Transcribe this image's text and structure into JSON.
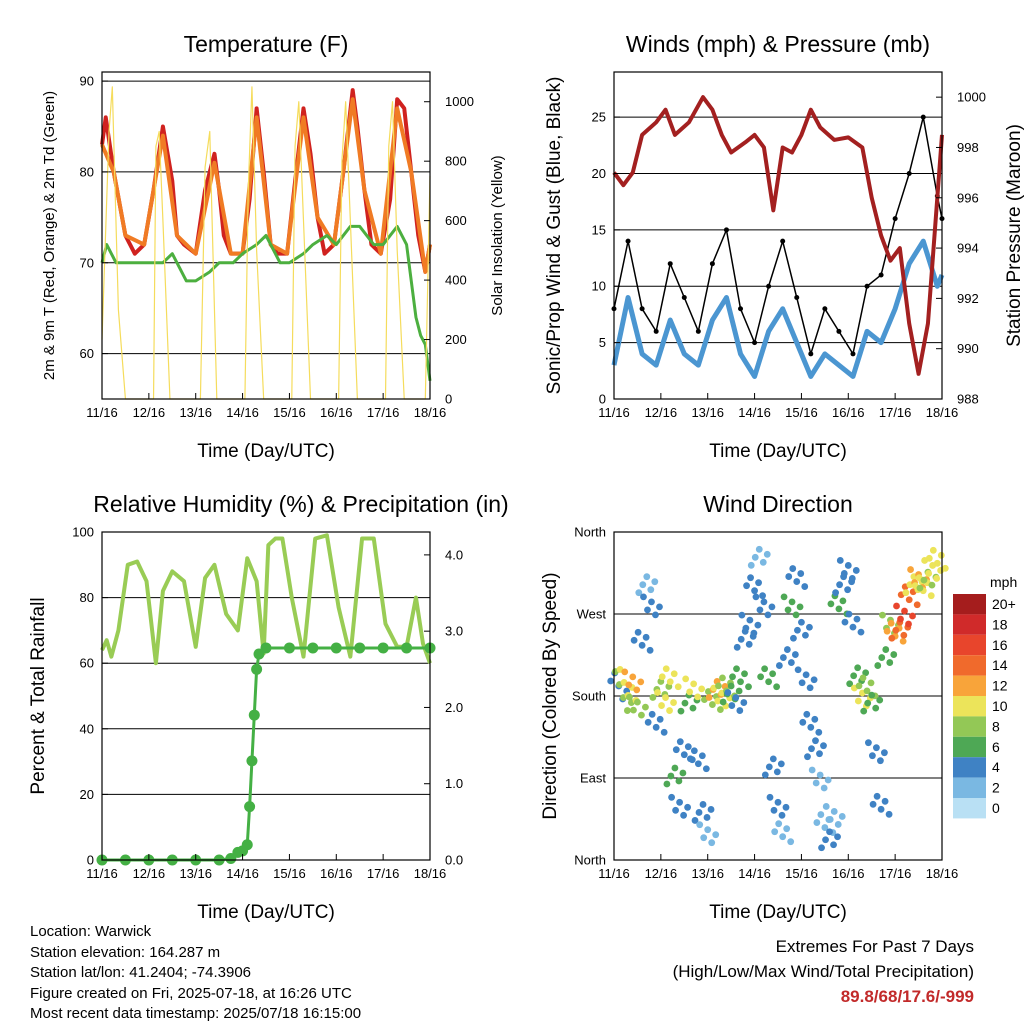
{
  "panels": {
    "temperature": {
      "title": "Temperature (F)",
      "ylabel_left": "2m & 9m T (Red, Orange) & 2m Td (Green)",
      "ylabel_right": "Solar Insolation (Yellow)",
      "xlabel": "Time (Day/UTC)"
    },
    "winds": {
      "title": "Winds (mph) & Pressure (mb)",
      "ylabel_left": "Sonic/Prop Wind & Gust (Blue, Black)",
      "ylabel_right": "Station Pressure (Maroon)",
      "xlabel": "Time (Day/UTC)"
    },
    "humidity": {
      "title": "Relative Humidity (%) & Precipitation (in)",
      "ylabel_left": "Percent & Total Rainfall",
      "xlabel": "Time (Day/UTC)"
    },
    "direction": {
      "title": "Wind Direction",
      "ylabel_left": "Direction (Colored By Speed)",
      "xlabel": "Time (Day/UTC)",
      "colorbar_title": "mph"
    }
  },
  "station_info": {
    "location": "Location: Warwick",
    "elevation": "Station elevation: 164.287 m",
    "latlon": "Station lat/lon: 41.2404; -74.3906",
    "created": "Figure created on Fri, 2025-07-18, at 16:26 UTC",
    "recent": "Most recent data timestamp: 2025/07/18 16:15:00"
  },
  "extremes": {
    "heading": "Extremes For Past 7 Days",
    "subheading": "(High/Low/Max Wind/Total Precipitation)",
    "values": "89.8/68/17.6/-999"
  },
  "colors": {
    "temp_2m": "#d0221f",
    "temp_9m": "#f07b24",
    "dewpoint": "#4caf3f",
    "solar": "#f5dc5c",
    "wind_sonic": "#4b96d1",
    "wind_gust": "#000000",
    "pressure": "#a32020",
    "rh": "#99cc55",
    "precip": "#44b044"
  },
  "chart_data": [
    {
      "type": "line",
      "title": "Temperature (F)",
      "xlabel": "Time (Day/UTC)",
      "ylabel": "2m & 9m T (Red, Orange) & 2m Td (Green)",
      "ylabel_right": "Solar Insolation (Yellow)",
      "x_ticks": [
        "11/16",
        "12/16",
        "13/16",
        "14/16",
        "15/16",
        "16/16",
        "17/16",
        "18/16"
      ],
      "xlim": [
        0,
        7
      ],
      "ylim": [
        55,
        91
      ],
      "y_ticks": [
        60,
        70,
        80,
        90
      ],
      "ylim_right": [
        0,
        1100
      ],
      "y_ticks_right": [
        0,
        200,
        400,
        600,
        800,
        1000
      ],
      "grid": "horizontal",
      "series": [
        {
          "name": "2m T",
          "color": "#d0221f",
          "axis": "left",
          "x": [
            0,
            0.08,
            0.25,
            0.5,
            0.7,
            0.9,
            1.1,
            1.3,
            1.5,
            1.6,
            1.75,
            2.0,
            2.2,
            2.4,
            2.5,
            2.6,
            2.75,
            3.0,
            3.15,
            3.3,
            3.45,
            3.6,
            3.75,
            3.95,
            4.1,
            4.3,
            4.45,
            4.6,
            4.75,
            4.95,
            5.15,
            5.35,
            5.45,
            5.6,
            5.75,
            5.95,
            6.15,
            6.3,
            6.45,
            6.6,
            6.75,
            6.9,
            7.0
          ],
          "y": [
            83,
            86,
            80,
            73,
            71,
            72,
            78,
            85,
            79,
            73,
            72,
            71,
            78,
            82,
            78,
            73,
            71,
            71,
            77,
            87,
            80,
            72,
            71,
            71,
            78,
            87,
            82,
            75,
            71,
            72,
            80,
            89,
            85,
            78,
            72,
            71,
            77,
            88,
            87,
            80,
            73,
            69,
            72
          ]
        },
        {
          "name": "9m T",
          "color": "#f07b24",
          "axis": "left",
          "x": [
            0,
            0.25,
            0.5,
            0.9,
            1.3,
            1.6,
            2.0,
            2.4,
            2.75,
            3.0,
            3.3,
            3.6,
            3.95,
            4.3,
            4.6,
            4.95,
            5.35,
            5.6,
            5.95,
            6.3,
            6.6,
            6.9,
            7.0
          ],
          "y": [
            83,
            80,
            73,
            72,
            84,
            73,
            71,
            81,
            71,
            71,
            86,
            72,
            71,
            86,
            75,
            72,
            88,
            78,
            71,
            87,
            80,
            69,
            72
          ]
        },
        {
          "name": "2m Td",
          "color": "#4caf3f",
          "axis": "left",
          "x": [
            0,
            0.1,
            0.3,
            0.5,
            0.8,
            1.0,
            1.3,
            1.5,
            1.8,
            2.0,
            2.3,
            2.5,
            2.8,
            3.0,
            3.3,
            3.5,
            3.8,
            4.0,
            4.3,
            4.5,
            4.8,
            5.0,
            5.3,
            5.5,
            5.8,
            6.0,
            6.3,
            6.5,
            6.7,
            6.8,
            6.9,
            7.0
          ],
          "y": [
            70,
            72,
            70,
            70,
            70,
            70,
            70,
            71,
            68,
            68,
            69,
            70,
            70,
            71,
            72,
            73,
            70,
            70,
            71,
            72,
            73,
            72,
            74,
            74,
            72,
            72,
            74,
            72,
            64,
            62,
            61,
            57
          ]
        },
        {
          "name": "Solar",
          "color": "#f5dc5c",
          "axis": "right",
          "x": [
            0,
            0.15,
            0.22,
            0.28,
            0.35,
            0.5,
            1.1,
            1.15,
            1.22,
            1.3,
            1.45,
            2.1,
            2.2,
            2.3,
            2.45,
            3.05,
            3.12,
            3.2,
            3.3,
            3.45,
            4.05,
            4.12,
            4.2,
            4.3,
            4.45,
            5.05,
            5.12,
            5.2,
            5.3,
            5.45,
            6.05,
            6.12,
            6.2,
            6.3,
            6.45,
            6.9,
            7.0
          ],
          "y": [
            200,
            900,
            1050,
            700,
            300,
            0,
            0,
            850,
            900,
            600,
            0,
            0,
            780,
            900,
            0,
            0,
            700,
            1050,
            500,
            0,
            0,
            850,
            1000,
            600,
            0,
            0,
            800,
            1000,
            600,
            0,
            0,
            850,
            1000,
            500,
            0,
            0,
            750
          ]
        }
      ]
    },
    {
      "type": "line",
      "title": "Winds (mph) & Pressure (mb)",
      "xlabel": "Time (Day/UTC)",
      "ylabel": "Sonic/Prop Wind & Gust (Blue, Black)",
      "ylabel_right": "Station Pressure (Maroon)",
      "x_ticks": [
        "11/16",
        "12/16",
        "13/16",
        "14/16",
        "15/16",
        "16/16",
        "17/16",
        "18/16"
      ],
      "xlim": [
        0,
        7
      ],
      "ylim": [
        0,
        29
      ],
      "y_ticks": [
        0,
        5,
        10,
        15,
        20,
        25
      ],
      "ylim_right": [
        988,
        1001
      ],
      "y_ticks_right": [
        988,
        990,
        992,
        994,
        996,
        998,
        1000
      ],
      "grid": "horizontal",
      "series": [
        {
          "name": "Sonic/Prop Wind",
          "color": "#4b96d1",
          "axis": "left",
          "x": [
            0,
            0.3,
            0.6,
            0.9,
            1.2,
            1.5,
            1.8,
            2.1,
            2.4,
            2.7,
            3.0,
            3.3,
            3.6,
            3.9,
            4.2,
            4.5,
            4.8,
            5.1,
            5.4,
            5.7,
            6.0,
            6.3,
            6.6,
            6.9,
            7.0
          ],
          "y": [
            3,
            9,
            4,
            3,
            7,
            4,
            3,
            7,
            9,
            4,
            2,
            6,
            8,
            5,
            2,
            4,
            3,
            2,
            6,
            5,
            8,
            12,
            14,
            10,
            11
          ]
        },
        {
          "name": "Gust",
          "color": "#000000",
          "axis": "left",
          "x": [
            0,
            0.3,
            0.6,
            0.9,
            1.2,
            1.5,
            1.8,
            2.1,
            2.4,
            2.7,
            3.0,
            3.3,
            3.6,
            3.9,
            4.2,
            4.5,
            4.8,
            5.1,
            5.4,
            5.7,
            6.0,
            6.3,
            6.6,
            6.9,
            7.0
          ],
          "y": [
            8,
            14,
            8,
            6,
            12,
            9,
            6,
            12,
            15,
            8,
            5,
            10,
            14,
            9,
            4,
            8,
            6,
            4,
            10,
            11,
            16,
            20,
            25,
            18,
            16
          ]
        },
        {
          "name": "Station Pressure",
          "color": "#a32020",
          "axis": "right",
          "x": [
            0,
            0.2,
            0.4,
            0.6,
            0.9,
            1.1,
            1.3,
            1.6,
            1.9,
            2.1,
            2.3,
            2.5,
            2.8,
            3.0,
            3.2,
            3.4,
            3.6,
            3.8,
            4.0,
            4.2,
            4.4,
            4.7,
            5.0,
            5.3,
            5.5,
            5.7,
            5.9,
            6.1,
            6.3,
            6.5,
            6.7,
            6.9,
            7.0
          ],
          "y": [
            997,
            996.5,
            997,
            998.5,
            999,
            999.5,
            998.5,
            999,
            1000,
            999.5,
            998.5,
            997.8,
            998.2,
            998.5,
            998,
            995.5,
            998,
            997.8,
            998.5,
            999.5,
            998.8,
            998.3,
            998.4,
            998,
            996,
            994.5,
            993.5,
            994,
            991,
            989,
            991,
            996,
            998.5
          ]
        }
      ]
    },
    {
      "type": "line",
      "title": "Relative Humidity (%) & Precipitation (in)",
      "xlabel": "Time (Day/UTC)",
      "ylabel": "Percent & Total Rainfall",
      "x_ticks": [
        "11/16",
        "12/16",
        "13/16",
        "14/16",
        "15/16",
        "16/16",
        "17/16",
        "18/16"
      ],
      "xlim": [
        0,
        7
      ],
      "ylim": [
        0,
        100
      ],
      "y_ticks": [
        0,
        20,
        40,
        60,
        80,
        100
      ],
      "ylim_right": [
        0,
        4.3
      ],
      "y_ticks_right": [
        0.0,
        1.0,
        2.0,
        3.0,
        4.0
      ],
      "grid": "horizontal",
      "series": [
        {
          "name": "Relative Humidity",
          "color": "#99cc55",
          "axis": "left",
          "x": [
            0,
            0.1,
            0.2,
            0.35,
            0.55,
            0.75,
            0.95,
            1.15,
            1.3,
            1.5,
            1.75,
            2.0,
            2.2,
            2.4,
            2.65,
            2.9,
            3.1,
            3.3,
            3.45,
            3.55,
            3.7,
            3.85,
            4.05,
            4.3,
            4.55,
            4.8,
            5.05,
            5.3,
            5.55,
            5.8,
            6.05,
            6.3,
            6.5,
            6.7,
            6.85,
            7.0
          ],
          "y": [
            64,
            67,
            62,
            70,
            90,
            91,
            85,
            60,
            82,
            88,
            85,
            65,
            86,
            90,
            75,
            70,
            92,
            85,
            63,
            96,
            98,
            98,
            80,
            62,
            98,
            99,
            77,
            62,
            98,
            98,
            72,
            65,
            65,
            80,
            66,
            60
          ]
        },
        {
          "name": "Total Precipitation",
          "color": "#44b044",
          "axis": "right",
          "x": [
            0,
            0.5,
            1.0,
            1.5,
            2.0,
            2.5,
            2.75,
            2.9,
            3.0,
            3.1,
            3.15,
            3.2,
            3.25,
            3.3,
            3.35,
            3.5,
            4.0,
            4.5,
            5.0,
            5.5,
            6.0,
            6.5,
            7.0
          ],
          "y": [
            0,
            0,
            0,
            0,
            0,
            0,
            0.02,
            0.1,
            0.12,
            0.2,
            0.7,
            1.3,
            1.9,
            2.5,
            2.7,
            2.78,
            2.78,
            2.78,
            2.78,
            2.78,
            2.78,
            2.78,
            2.78
          ]
        }
      ]
    },
    {
      "type": "scatter",
      "title": "Wind Direction",
      "xlabel": "Time (Day/UTC)",
      "ylabel": "Direction (Colored By Speed)",
      "x_ticks": [
        "11/16",
        "12/16",
        "13/16",
        "14/16",
        "15/16",
        "16/16",
        "17/16",
        "18/16"
      ],
      "xlim": [
        0,
        7
      ],
      "ylim": [
        0,
        360
      ],
      "y_ticks": [
        0,
        90,
        180,
        270,
        360
      ],
      "y_tick_labels": [
        "North",
        "East",
        "South",
        "West",
        "North"
      ],
      "grid": "horizontal",
      "colorbar": {
        "title": "mph",
        "labels": [
          "20+",
          "18",
          "16",
          "14",
          "12",
          "10",
          "8",
          "6",
          "4",
          "2",
          "0"
        ],
        "colors": [
          "#a51d1d",
          "#d02a2a",
          "#e8452c",
          "#f06a2c",
          "#f8a43a",
          "#ece45a",
          "#93c856",
          "#4ea855",
          "#3f82c4",
          "#7ab8e2",
          "#b9e0f4"
        ]
      },
      "x": [
        0.1,
        0.2,
        0.3,
        0.4,
        0.5,
        0.6,
        0.7,
        0.8,
        0.9,
        1.0,
        1.1,
        1.2,
        1.3,
        1.4,
        1.5,
        1.6,
        1.7,
        1.8,
        1.9,
        2.0,
        2.1,
        2.2,
        2.3,
        2.4,
        2.5,
        2.6,
        2.7,
        2.8,
        2.9,
        3.0,
        3.1,
        3.2,
        3.3,
        3.4,
        3.5,
        3.6,
        3.7,
        3.8,
        3.9,
        4.0,
        4.1,
        4.2,
        4.3,
        4.4,
        4.5,
        4.6,
        4.7,
        4.8,
        4.9,
        5.0,
        5.1,
        5.2,
        5.3,
        5.4,
        5.5,
        5.6,
        5.7,
        5.8,
        5.9,
        6.0,
        6.1,
        6.2,
        6.3,
        6.4,
        6.5,
        6.6,
        6.7,
        6.8,
        6.9
      ],
      "y": [
        180,
        175,
        185,
        190,
        170,
        240,
        300,
        280,
        150,
        185,
        175,
        200,
        90,
        60,
        120,
        170,
        190,
        110,
        50,
        30,
        175,
        185,
        180,
        190,
        180,
        175,
        200,
        240,
        260,
        300,
        330,
        280,
        200,
        100,
        60,
        30,
        220,
        280,
        310,
        250,
        200,
        150,
        120,
        90,
        40,
        20,
        50,
        280,
        300,
        320,
        260,
        200,
        180,
        190,
        170,
        120,
        60,
        220,
        260,
        250,
        250,
        270,
        290,
        300,
        310,
        300,
        305,
        320,
        330
      ],
      "speed": [
        4,
        8,
        10,
        12,
        8,
        3,
        2,
        4,
        3,
        8,
        10,
        9,
        5,
        4,
        3,
        6,
        10,
        4,
        3,
        2,
        8,
        12,
        10,
        8,
        6,
        4,
        5,
        3,
        4,
        4,
        2,
        3,
        6,
        4,
        3,
        2,
        4,
        5,
        3,
        4,
        3,
        4,
        3,
        2,
        2,
        3,
        2,
        5,
        4,
        3,
        4,
        6,
        10,
        8,
        6,
        4,
        3,
        6,
        8,
        12,
        14,
        16,
        14,
        10,
        12,
        10,
        8,
        10,
        9
      ]
    }
  ]
}
